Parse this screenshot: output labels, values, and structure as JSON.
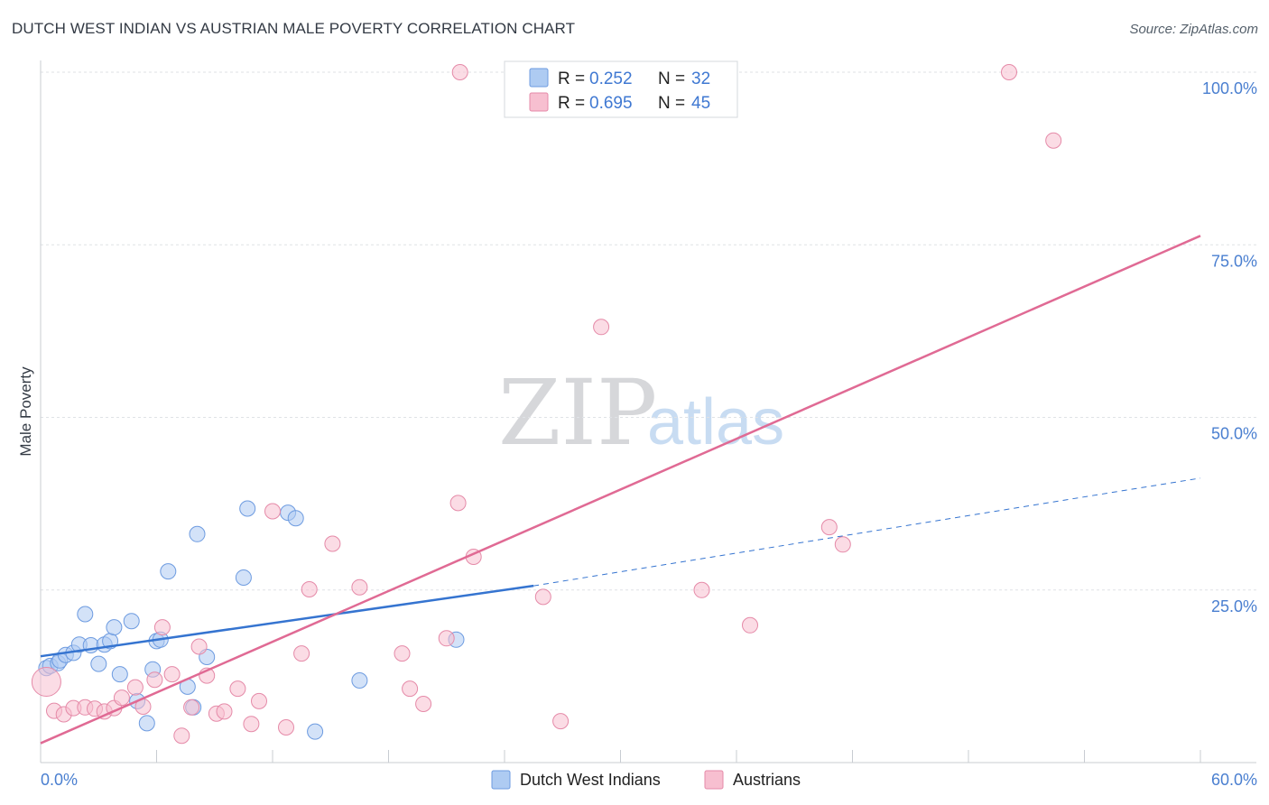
{
  "title": "DUTCH WEST INDIAN VS AUSTRIAN MALE POVERTY CORRELATION CHART",
  "source": "Source: ZipAtlas.com",
  "watermark": {
    "zip": "ZIP",
    "atlas": "atlas"
  },
  "legend": {
    "rows": [
      {
        "r_label": "R = ",
        "r_value": "0.252",
        "n_label": "N = ",
        "n_value": "32",
        "color": "#aecbf2",
        "edge": "#6d9be0"
      },
      {
        "r_label": "R = ",
        "r_value": "0.695",
        "n_label": "N = ",
        "n_value": "45",
        "color": "#f7bfd0",
        "edge": "#e58aa8"
      }
    ]
  },
  "chart_data": {
    "type": "scatter",
    "title": "DUTCH WEST INDIAN VS AUSTRIAN MALE POVERTY CORRELATION CHART",
    "xlabel": "",
    "ylabel": "Male Poverty",
    "xlim": [
      0,
      60
    ],
    "ylim": [
      0,
      100
    ],
    "x_tick_labels": [
      "0.0%",
      "60.0%"
    ],
    "y_ticks": [
      25,
      50,
      75,
      100
    ],
    "y_tick_labels": [
      "25.0%",
      "50.0%",
      "75.0%",
      "100.0%"
    ],
    "grid": true,
    "series": [
      {
        "name": "Dutch West Indians",
        "color": "#aecbf2",
        "edge": "#6d9be0",
        "line_color": "#3574d0",
        "R": 0.252,
        "N": 32,
        "trend": {
          "x0": 0,
          "y0": 15.4,
          "x1": 25.5,
          "y1": 25.6,
          "x_dash_end": 60,
          "y_dash_end": 41.2
        },
        "points": [
          [
            0.3,
            13.7
          ],
          [
            0.5,
            14.0
          ],
          [
            0.9,
            14.4
          ],
          [
            1.0,
            14.8
          ],
          [
            1.3,
            15.6
          ],
          [
            1.7,
            15.9
          ],
          [
            2.0,
            17.1
          ],
          [
            2.3,
            21.5
          ],
          [
            2.6,
            17.0
          ],
          [
            3.0,
            14.3
          ],
          [
            3.3,
            17.1
          ],
          [
            3.6,
            17.6
          ],
          [
            3.8,
            19.6
          ],
          [
            4.1,
            12.8
          ],
          [
            4.7,
            20.5
          ],
          [
            5.0,
            8.9
          ],
          [
            5.5,
            5.7
          ],
          [
            5.8,
            13.5
          ],
          [
            6.0,
            17.6
          ],
          [
            6.2,
            17.8
          ],
          [
            6.6,
            27.7
          ],
          [
            7.6,
            11.0
          ],
          [
            7.9,
            8.0
          ],
          [
            8.1,
            33.1
          ],
          [
            8.6,
            15.3
          ],
          [
            10.5,
            26.8
          ],
          [
            10.7,
            36.8
          ],
          [
            12.8,
            36.2
          ],
          [
            13.2,
            35.4
          ],
          [
            14.2,
            4.5
          ],
          [
            16.5,
            11.9
          ],
          [
            21.5,
            17.8
          ]
        ]
      },
      {
        "name": "Austrians",
        "color": "#f7bfd0",
        "edge": "#e58aa8",
        "line_color": "#e06a94",
        "R": 0.695,
        "N": 45,
        "trend": {
          "x0": 0,
          "y0": 2.8,
          "x1": 60,
          "y1": 76.3
        },
        "points": [
          [
            0.3,
            11.7
          ],
          [
            0.7,
            7.5
          ],
          [
            1.2,
            7.0
          ],
          [
            1.7,
            7.9
          ],
          [
            2.3,
            8.0
          ],
          [
            2.8,
            7.8
          ],
          [
            3.3,
            7.4
          ],
          [
            3.8,
            7.9
          ],
          [
            4.2,
            9.4
          ],
          [
            4.9,
            10.9
          ],
          [
            5.3,
            8.1
          ],
          [
            5.9,
            12.0
          ],
          [
            6.3,
            19.6
          ],
          [
            6.8,
            12.8
          ],
          [
            7.3,
            3.9
          ],
          [
            7.8,
            8.0
          ],
          [
            8.2,
            16.8
          ],
          [
            8.6,
            12.6
          ],
          [
            9.1,
            7.1
          ],
          [
            9.5,
            7.4
          ],
          [
            10.2,
            10.7
          ],
          [
            10.9,
            5.6
          ],
          [
            11.3,
            8.9
          ],
          [
            12.0,
            36.4
          ],
          [
            12.7,
            5.1
          ],
          [
            13.5,
            15.8
          ],
          [
            13.9,
            25.1
          ],
          [
            15.1,
            31.7
          ],
          [
            16.5,
            25.4
          ],
          [
            18.7,
            15.8
          ],
          [
            19.1,
            10.7
          ],
          [
            19.8,
            8.5
          ],
          [
            21.0,
            18.0
          ],
          [
            21.6,
            37.6
          ],
          [
            21.7,
            100.0
          ],
          [
            22.4,
            29.8
          ],
          [
            26.0,
            24.0
          ],
          [
            26.9,
            6.0
          ],
          [
            29.0,
            63.1
          ],
          [
            34.2,
            25.0
          ],
          [
            36.7,
            19.9
          ],
          [
            40.8,
            34.1
          ],
          [
            41.5,
            31.6
          ],
          [
            50.1,
            100.0
          ],
          [
            52.4,
            90.1
          ]
        ]
      }
    ]
  }
}
